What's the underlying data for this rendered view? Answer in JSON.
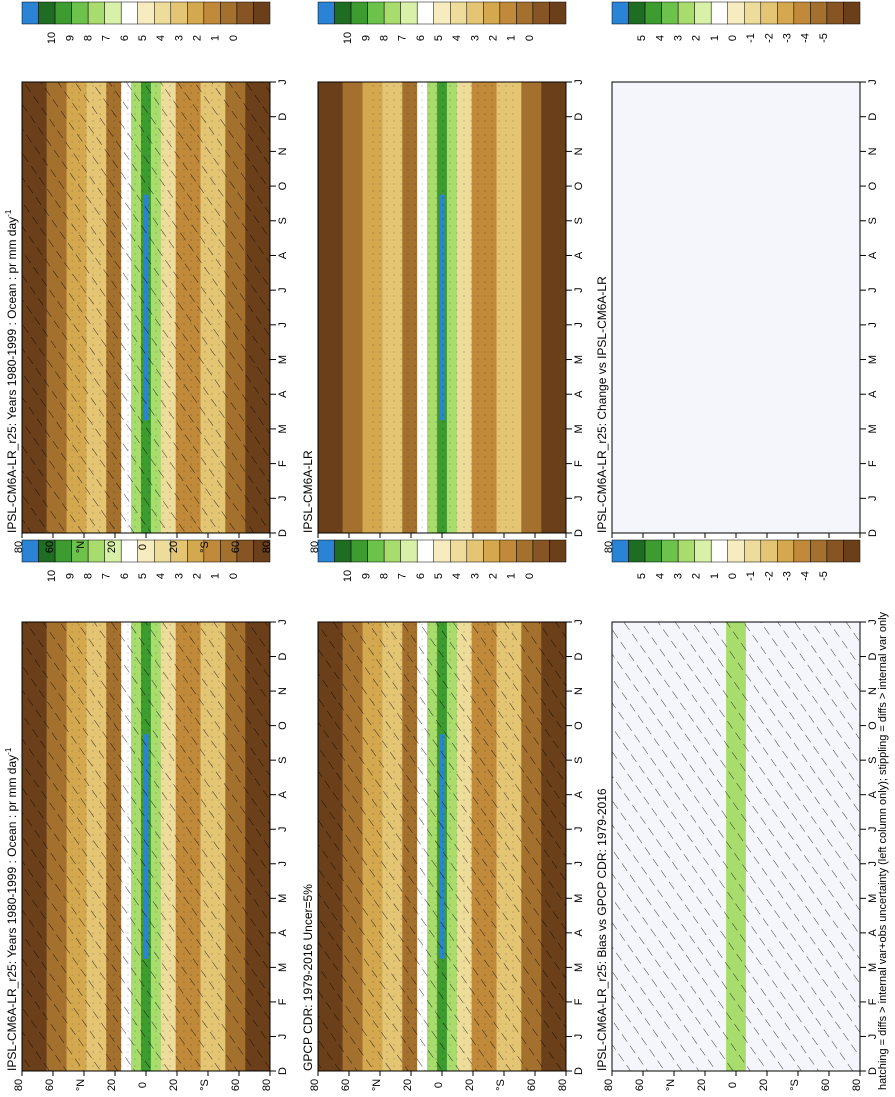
{
  "figure": {
    "footnote": "hatching = diffs > internal var+obs uncertainty (left column only); stippling = diffs > internal var only"
  },
  "chart_data": [
    {
      "type": "heatmap",
      "title": "IPSL-CM6A-LR_r25: Years 1980-1999 : Ocean : pr mm day",
      "title_superscript": "-1",
      "xlabel": "",
      "ylabel": "",
      "x_categories": [
        "D",
        "J",
        "F",
        "M",
        "A",
        "M",
        "J",
        "J",
        "A",
        "S",
        "O",
        "N",
        "D",
        "J"
      ],
      "y_ticks": [
        "80",
        "60",
        "°N",
        "20",
        "0",
        "20",
        "°S",
        "60",
        "80"
      ],
      "ylim": [
        -90,
        90
      ],
      "colorbar": {
        "levels": [
          "10",
          "9",
          "8",
          "7",
          "6",
          "5",
          "4",
          "3",
          "2",
          "1",
          "0"
        ],
        "colors": [
          "#2b83d6",
          "#1f6d23",
          "#3d9b2f",
          "#6cc24a",
          "#a8dd6e",
          "#d8f0a8",
          "#ffffff",
          "#f7ecc0",
          "#eedc9a",
          "#e3c574",
          "#d3a84f",
          "#c08a3a",
          "#a4702d",
          "#865523",
          "#6a3f19"
        ]
      },
      "hatching": true,
      "stippling": true
    },
    {
      "type": "heatmap",
      "title": "IPSL-CM6A-LR",
      "xlabel": "",
      "ylabel": "",
      "x_categories": [
        "D",
        "J",
        "F",
        "M",
        "A",
        "M",
        "J",
        "J",
        "A",
        "S",
        "O",
        "N",
        "D",
        "J"
      ],
      "y_ticks": [
        "80",
        "60",
        "°N",
        "20",
        "0",
        "20",
        "°S",
        "60",
        "80"
      ],
      "ylim": [
        -90,
        90
      ],
      "colorbar": {
        "levels": [
          "10",
          "9",
          "8",
          "7",
          "6",
          "5",
          "4",
          "3",
          "2",
          "1",
          "0"
        ],
        "colors": [
          "#2b83d6",
          "#1f6d23",
          "#3d9b2f",
          "#6cc24a",
          "#a8dd6e",
          "#d8f0a8",
          "#ffffff",
          "#f7ecc0",
          "#eedc9a",
          "#e3c574",
          "#d3a84f",
          "#c08a3a",
          "#a4702d",
          "#865523",
          "#6a3f19"
        ]
      },
      "hatching": false,
      "stippling": true
    },
    {
      "type": "heatmap",
      "title": "IPSL-CM6A-LR_r25: Change vs IPSL-CM6A-LR",
      "xlabel": "",
      "ylabel": "",
      "x_categories": [
        "D",
        "J",
        "F",
        "M",
        "A",
        "M",
        "J",
        "J",
        "A",
        "S",
        "O",
        "N",
        "D",
        "J"
      ],
      "y_ticks": [
        "80",
        "60",
        "°N",
        "20",
        "0",
        "20",
        "°S",
        "60",
        "80"
      ],
      "ylim": [
        -90,
        90
      ],
      "colorbar": {
        "levels": [
          "5",
          "4",
          "3",
          "2",
          "1",
          "0",
          "-1",
          "-2",
          "-3",
          "-4",
          "-5"
        ],
        "colors": [
          "#2b83d6",
          "#1f6d23",
          "#3d9b2f",
          "#6cc24a",
          "#a8dd6e",
          "#d8f0a8",
          "#ffffff",
          "#f7ecc0",
          "#eedc9a",
          "#e3c574",
          "#d3a84f",
          "#c08a3a",
          "#a4702d",
          "#865523",
          "#6a3f19"
        ]
      },
      "hatching": false,
      "stippling": true
    },
    {
      "type": "heatmap",
      "title": "GPCP CDR: 1979-2016 Uncer=5%",
      "xlabel": "",
      "ylabel": "",
      "x_categories": [
        "D",
        "J",
        "F",
        "M",
        "A",
        "M",
        "J",
        "J",
        "A",
        "S",
        "O",
        "N",
        "D",
        "J"
      ],
      "y_ticks": [
        "80",
        "60",
        "°N",
        "20",
        "0",
        "20",
        "°S",
        "60",
        "80"
      ],
      "ylim": [
        -90,
        90
      ],
      "colorbar": {
        "levels": [
          "10",
          "9",
          "8",
          "7",
          "6",
          "5",
          "4",
          "3",
          "2",
          "1",
          "0"
        ],
        "colors": [
          "#2b83d6",
          "#1f6d23",
          "#3d9b2f",
          "#6cc24a",
          "#a8dd6e",
          "#d8f0a8",
          "#ffffff",
          "#f7ecc0",
          "#eedc9a",
          "#e3c574",
          "#d3a84f",
          "#c08a3a",
          "#a4702d",
          "#865523",
          "#6a3f19"
        ]
      },
      "hatching": true,
      "stippling": true
    },
    {
      "type": "heatmap",
      "title": "IPSL-CM6A-LR_r25: Bias vs GPCP CDR: 1979-2016",
      "xlabel": "",
      "ylabel": "",
      "x_categories": [
        "D",
        "J",
        "F",
        "M",
        "A",
        "M",
        "J",
        "J",
        "A",
        "S",
        "O",
        "N",
        "D",
        "J"
      ],
      "y_ticks": [
        "80",
        "60",
        "°N",
        "20",
        "0",
        "20",
        "°S",
        "60",
        "80"
      ],
      "ylim": [
        -90,
        90
      ],
      "colorbar": {
        "levels": [
          "5",
          "4",
          "3",
          "2",
          "1",
          "0",
          "-1",
          "-2",
          "-3",
          "-4",
          "-5"
        ],
        "colors": [
          "#2b83d6",
          "#1f6d23",
          "#3d9b2f",
          "#6cc24a",
          "#a8dd6e",
          "#d8f0a8",
          "#ffffff",
          "#f7ecc0",
          "#eedc9a",
          "#e3c574",
          "#d3a84f",
          "#c08a3a",
          "#a4702d",
          "#865523",
          "#6a3f19"
        ]
      },
      "hatching": true,
      "stippling": true
    }
  ]
}
